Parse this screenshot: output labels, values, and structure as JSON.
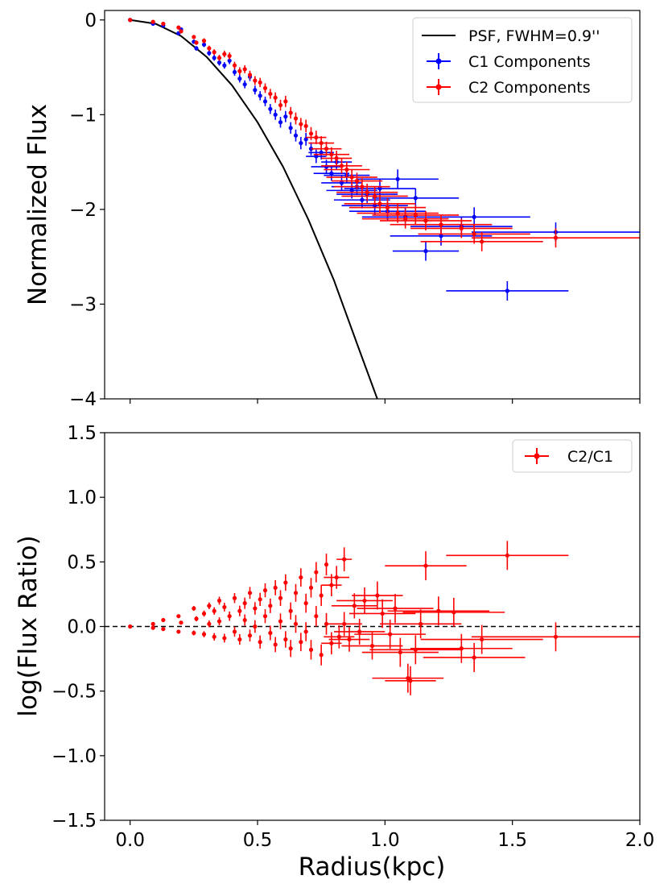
{
  "colors": {
    "c1": "#0000ff",
    "c2": "#ff0000",
    "psf": "#000000",
    "ref": "#000000"
  },
  "chart_data": [
    {
      "type": "scatter",
      "title": "",
      "xlabel": "",
      "ylabel": "Normalized Flux",
      "xlim": [
        -0.1,
        2.0
      ],
      "ylim": [
        -4,
        0.1
      ],
      "yticks": [
        0,
        -1,
        -2,
        -3,
        -4
      ],
      "ytick_labels": [
        "0",
        "−1",
        "−2",
        "−3",
        "−4"
      ],
      "legend_position": "top-right",
      "legend": [
        "PSF, FWHM=0.9''",
        "C1 Components",
        "C2 Components"
      ],
      "psf_curve": {
        "name": "PSF, FWHM=0.9''",
        "x": [
          0,
          0.1,
          0.2,
          0.3,
          0.4,
          0.5,
          0.6,
          0.7,
          0.8,
          0.9,
          0.97
        ],
        "y": [
          0,
          -0.04,
          -0.17,
          -0.39,
          -0.69,
          -1.08,
          -1.55,
          -2.11,
          -2.75,
          -3.49,
          -4.0
        ]
      },
      "series": [
        {
          "name": "C1 Components",
          "points": [
            {
              "x": 0.0,
              "y": 0.0
            },
            {
              "x": 0.09,
              "y": -0.04
            },
            {
              "x": 0.13,
              "y": -0.06
            },
            {
              "x": 0.19,
              "y": -0.14
            },
            {
              "x": 0.2,
              "y": -0.1
            },
            {
              "x": 0.25,
              "y": -0.23
            },
            {
              "x": 0.26,
              "y": -0.3
            },
            {
              "x": 0.29,
              "y": -0.26
            },
            {
              "x": 0.31,
              "y": -0.35
            },
            {
              "x": 0.33,
              "y": -0.4
            },
            {
              "x": 0.35,
              "y": -0.45
            },
            {
              "x": 0.37,
              "y": -0.48
            },
            {
              "x": 0.39,
              "y": -0.43
            },
            {
              "x": 0.41,
              "y": -0.55
            },
            {
              "x": 0.43,
              "y": -0.62
            },
            {
              "x": 0.45,
              "y": -0.68
            },
            {
              "x": 0.47,
              "y": -0.6
            },
            {
              "x": 0.49,
              "y": -0.74
            },
            {
              "x": 0.51,
              "y": -0.8
            },
            {
              "x": 0.53,
              "y": -0.86
            },
            {
              "x": 0.55,
              "y": -0.94
            },
            {
              "x": 0.57,
              "y": -1.0
            },
            {
              "x": 0.59,
              "y": -1.08
            },
            {
              "x": 0.61,
              "y": -1.02
            },
            {
              "x": 0.63,
              "y": -1.14
            },
            {
              "x": 0.65,
              "y": -1.22
            },
            {
              "x": 0.67,
              "y": -1.3
            },
            {
              "x": 0.69,
              "y": -1.26
            },
            {
              "x": 0.71,
              "y": -1.36
            },
            {
              "x": 0.73,
              "y": -1.44,
              "xerr": 0.04
            },
            {
              "x": 0.75,
              "y": -1.4,
              "xerr": 0.05
            },
            {
              "x": 0.77,
              "y": -1.55,
              "xerr": 0.06
            },
            {
              "x": 0.79,
              "y": -1.62,
              "xerr": 0.07
            },
            {
              "x": 0.81,
              "y": -1.5,
              "xerr": 0.06
            },
            {
              "x": 0.83,
              "y": -1.72,
              "xerr": 0.08
            },
            {
              "x": 0.85,
              "y": -1.64,
              "xerr": 0.09
            },
            {
              "x": 0.87,
              "y": -1.8,
              "xerr": 0.1
            },
            {
              "x": 0.89,
              "y": -1.76,
              "xerr": 0.1
            },
            {
              "x": 0.91,
              "y": -1.9,
              "xerr": 0.11
            },
            {
              "x": 0.93,
              "y": -1.84,
              "xerr": 0.12
            },
            {
              "x": 0.96,
              "y": -1.96,
              "xerr": 0.13
            },
            {
              "x": 0.98,
              "y": -1.78,
              "xerr": 0.14
            },
            {
              "x": 1.01,
              "y": -2.02,
              "xerr": 0.15
            },
            {
              "x": 1.05,
              "y": -1.68,
              "xerr": 0.16
            },
            {
              "x": 1.08,
              "y": -2.08,
              "xerr": 0.17
            },
            {
              "x": 1.12,
              "y": -1.88,
              "xerr": 0.17
            },
            {
              "x": 1.16,
              "y": -2.44,
              "xerr": 0.13
            },
            {
              "x": 1.22,
              "y": -2.28,
              "xerr": 0.2
            },
            {
              "x": 1.3,
              "y": -2.18,
              "xerr": 0.2
            },
            {
              "x": 1.35,
              "y": -2.08,
              "xerr": 0.22
            },
            {
              "x": 1.48,
              "y": -2.86,
              "xerr": 0.24
            },
            {
              "x": 1.67,
              "y": -2.24,
              "xerr": 0.33
            }
          ]
        },
        {
          "name": "C2 Components",
          "points": [
            {
              "x": 0.0,
              "y": 0.0
            },
            {
              "x": 0.09,
              "y": -0.02
            },
            {
              "x": 0.13,
              "y": -0.04
            },
            {
              "x": 0.19,
              "y": -0.08
            },
            {
              "x": 0.2,
              "y": -0.12
            },
            {
              "x": 0.25,
              "y": -0.18
            },
            {
              "x": 0.26,
              "y": -0.24
            },
            {
              "x": 0.29,
              "y": -0.22
            },
            {
              "x": 0.31,
              "y": -0.3
            },
            {
              "x": 0.33,
              "y": -0.34
            },
            {
              "x": 0.35,
              "y": -0.4
            },
            {
              "x": 0.37,
              "y": -0.36
            },
            {
              "x": 0.39,
              "y": -0.38
            },
            {
              "x": 0.41,
              "y": -0.48
            },
            {
              "x": 0.43,
              "y": -0.54
            },
            {
              "x": 0.45,
              "y": -0.52
            },
            {
              "x": 0.47,
              "y": -0.58
            },
            {
              "x": 0.49,
              "y": -0.64
            },
            {
              "x": 0.51,
              "y": -0.66
            },
            {
              "x": 0.53,
              "y": -0.72
            },
            {
              "x": 0.55,
              "y": -0.78
            },
            {
              "x": 0.57,
              "y": -0.82
            },
            {
              "x": 0.59,
              "y": -0.9
            },
            {
              "x": 0.61,
              "y": -0.86
            },
            {
              "x": 0.63,
              "y": -0.98
            },
            {
              "x": 0.65,
              "y": -1.04
            },
            {
              "x": 0.67,
              "y": -1.1
            },
            {
              "x": 0.69,
              "y": -1.12
            },
            {
              "x": 0.71,
              "y": -1.2
            },
            {
              "x": 0.73,
              "y": -1.24,
              "xerr": 0.04
            },
            {
              "x": 0.75,
              "y": -1.3,
              "xerr": 0.05
            },
            {
              "x": 0.77,
              "y": -1.36,
              "xerr": 0.06
            },
            {
              "x": 0.79,
              "y": -1.42,
              "xerr": 0.07
            },
            {
              "x": 0.81,
              "y": -1.46,
              "xerr": 0.06
            },
            {
              "x": 0.83,
              "y": -1.54,
              "xerr": 0.08
            },
            {
              "x": 0.85,
              "y": -1.58,
              "xerr": 0.09
            },
            {
              "x": 0.87,
              "y": -1.66,
              "xerr": 0.1
            },
            {
              "x": 0.89,
              "y": -1.7,
              "xerr": 0.1
            },
            {
              "x": 0.91,
              "y": -1.76,
              "xerr": 0.11
            },
            {
              "x": 0.93,
              "y": -1.82,
              "xerr": 0.12
            },
            {
              "x": 0.96,
              "y": -1.86,
              "xerr": 0.13
            },
            {
              "x": 0.98,
              "y": -1.94,
              "xerr": 0.14
            },
            {
              "x": 1.01,
              "y": -1.98,
              "xerr": 0.15
            },
            {
              "x": 1.05,
              "y": -2.04,
              "xerr": 0.16
            },
            {
              "x": 1.08,
              "y": -2.1,
              "xerr": 0.17
            },
            {
              "x": 1.12,
              "y": -2.06,
              "xerr": 0.17
            },
            {
              "x": 1.16,
              "y": -2.12,
              "xerr": 0.18
            },
            {
              "x": 1.22,
              "y": -2.16,
              "xerr": 0.2
            },
            {
              "x": 1.3,
              "y": -2.2,
              "xerr": 0.2
            },
            {
              "x": 1.35,
              "y": -2.26,
              "xerr": 0.22
            },
            {
              "x": 1.38,
              "y": -2.34,
              "xerr": 0.24
            },
            {
              "x": 1.67,
              "y": -2.3,
              "xerr": 0.33
            }
          ]
        }
      ]
    },
    {
      "type": "scatter",
      "title": "",
      "xlabel": "Radius(kpc)",
      "ylabel": "log(Flux Ratio)",
      "xlim": [
        -0.1,
        2.0
      ],
      "ylim": [
        -1.5,
        1.5
      ],
      "xticks": [
        0.0,
        0.5,
        1.0,
        1.5,
        2.0
      ],
      "xtick_labels": [
        "0.0",
        "0.5",
        "1.0",
        "1.5",
        "2.0"
      ],
      "yticks": [
        1.5,
        1.0,
        0.5,
        0.0,
        -0.5,
        -1.0,
        -1.5
      ],
      "ytick_labels": [
        "1.5",
        "1.0",
        "0.5",
        "0.0",
        "−0.5",
        "−1.0",
        "−1.5"
      ],
      "legend_position": "top-right",
      "legend": [
        "C2/C1"
      ],
      "reference_line": {
        "y": 0.0,
        "style": "dashed"
      },
      "series": [
        {
          "name": "C2/C1",
          "points": [
            {
              "x": 0.0,
              "y": 0.0
            },
            {
              "x": 0.09,
              "y": 0.02
            },
            {
              "x": 0.09,
              "y": -0.01
            },
            {
              "x": 0.13,
              "y": 0.05
            },
            {
              "x": 0.13,
              "y": -0.02
            },
            {
              "x": 0.19,
              "y": 0.08
            },
            {
              "x": 0.19,
              "y": -0.04
            },
            {
              "x": 0.2,
              "y": 0.03
            },
            {
              "x": 0.25,
              "y": 0.14
            },
            {
              "x": 0.25,
              "y": -0.05
            },
            {
              "x": 0.26,
              "y": 0.06
            },
            {
              "x": 0.29,
              "y": 0.1
            },
            {
              "x": 0.29,
              "y": -0.06
            },
            {
              "x": 0.31,
              "y": 0.16
            },
            {
              "x": 0.31,
              "y": 0.02
            },
            {
              "x": 0.33,
              "y": -0.08
            },
            {
              "x": 0.33,
              "y": 0.12
            },
            {
              "x": 0.35,
              "y": 0.2
            },
            {
              "x": 0.35,
              "y": 0.04
            },
            {
              "x": 0.37,
              "y": -0.09
            },
            {
              "x": 0.37,
              "y": 0.15
            },
            {
              "x": 0.39,
              "y": 0.08
            },
            {
              "x": 0.41,
              "y": 0.22
            },
            {
              "x": 0.41,
              "y": -0.04
            },
            {
              "x": 0.43,
              "y": -0.1
            },
            {
              "x": 0.43,
              "y": 0.12
            },
            {
              "x": 0.45,
              "y": 0.18
            },
            {
              "x": 0.45,
              "y": 0.05
            },
            {
              "x": 0.47,
              "y": 0.26
            },
            {
              "x": 0.47,
              "y": -0.07
            },
            {
              "x": 0.49,
              "y": 0.14
            },
            {
              "x": 0.49,
              "y": 0.0
            },
            {
              "x": 0.51,
              "y": 0.21
            },
            {
              "x": 0.51,
              "y": -0.12
            },
            {
              "x": 0.53,
              "y": 0.28
            },
            {
              "x": 0.53,
              "y": 0.08
            },
            {
              "x": 0.55,
              "y": -0.05
            },
            {
              "x": 0.55,
              "y": 0.16
            },
            {
              "x": 0.57,
              "y": 0.3
            },
            {
              "x": 0.57,
              "y": -0.14
            },
            {
              "x": 0.59,
              "y": 0.22
            },
            {
              "x": 0.59,
              "y": 0.04
            },
            {
              "x": 0.61,
              "y": 0.34
            },
            {
              "x": 0.61,
              "y": -0.1
            },
            {
              "x": 0.63,
              "y": 0.12
            },
            {
              "x": 0.63,
              "y": -0.17
            },
            {
              "x": 0.65,
              "y": 0.26
            },
            {
              "x": 0.65,
              "y": 0.02
            },
            {
              "x": 0.67,
              "y": 0.38
            },
            {
              "x": 0.67,
              "y": -0.12
            },
            {
              "x": 0.69,
              "y": 0.18
            },
            {
              "x": 0.69,
              "y": -0.04
            },
            {
              "x": 0.71,
              "y": 0.3
            },
            {
              "x": 0.71,
              "y": -0.18
            },
            {
              "x": 0.73,
              "y": 0.42
            },
            {
              "x": 0.73,
              "y": 0.08
            },
            {
              "x": 0.75,
              "y": 0.24
            },
            {
              "x": 0.75,
              "y": -0.22
            },
            {
              "x": 0.77,
              "y": 0.48
            },
            {
              "x": 0.77,
              "y": 0.02
            },
            {
              "x": 0.79,
              "y": 0.32,
              "xerr": 0.04
            },
            {
              "x": 0.79,
              "y": -0.13,
              "xerr": 0.04
            },
            {
              "x": 0.81,
              "y": 0.38,
              "xerr": 0.05
            },
            {
              "x": 0.82,
              "y": -0.08,
              "xerr": 0.06
            },
            {
              "x": 0.84,
              "y": 0.52,
              "xerr": 0.03
            },
            {
              "x": 0.84,
              "y": 0.02,
              "xerr": 0.07
            },
            {
              "x": 0.86,
              "y": -0.1,
              "xerr": 0.08
            },
            {
              "x": 0.88,
              "y": 0.16,
              "xerr": 0.09
            },
            {
              "x": 0.9,
              "y": -0.04,
              "xerr": 0.1
            },
            {
              "x": 0.92,
              "y": 0.2,
              "xerr": 0.11
            },
            {
              "x": 0.95,
              "y": -0.15,
              "xerr": 0.12
            },
            {
              "x": 0.97,
              "y": 0.24,
              "xerr": 0.1
            },
            {
              "x": 0.99,
              "y": 0.1,
              "xerr": 0.13
            },
            {
              "x": 1.02,
              "y": -0.06,
              "xerr": 0.14
            },
            {
              "x": 1.04,
              "y": 0.14,
              "xerr": 0.15
            },
            {
              "x": 1.06,
              "y": -0.2,
              "xerr": 0.15
            },
            {
              "x": 1.09,
              "y": -0.4,
              "xerr": 0.14
            },
            {
              "x": 1.1,
              "y": -0.42,
              "xerr": 0.1
            },
            {
              "x": 1.12,
              "y": -0.18,
              "xerr": 0.18
            },
            {
              "x": 1.14,
              "y": 0.02,
              "xerr": 0.16
            },
            {
              "x": 1.16,
              "y": 0.47,
              "xerr": 0.16
            },
            {
              "x": 1.21,
              "y": 0.12,
              "xerr": 0.2
            },
            {
              "x": 1.27,
              "y": 0.11,
              "xerr": 0.2
            },
            {
              "x": 1.3,
              "y": -0.17,
              "xerr": 0.2
            },
            {
              "x": 1.35,
              "y": -0.24,
              "xerr": 0.2
            },
            {
              "x": 1.38,
              "y": -0.1,
              "xerr": 0.24
            },
            {
              "x": 1.48,
              "y": 0.55,
              "xerr": 0.24
            },
            {
              "x": 1.67,
              "y": -0.08,
              "xerr": 0.33
            }
          ]
        }
      ]
    }
  ]
}
